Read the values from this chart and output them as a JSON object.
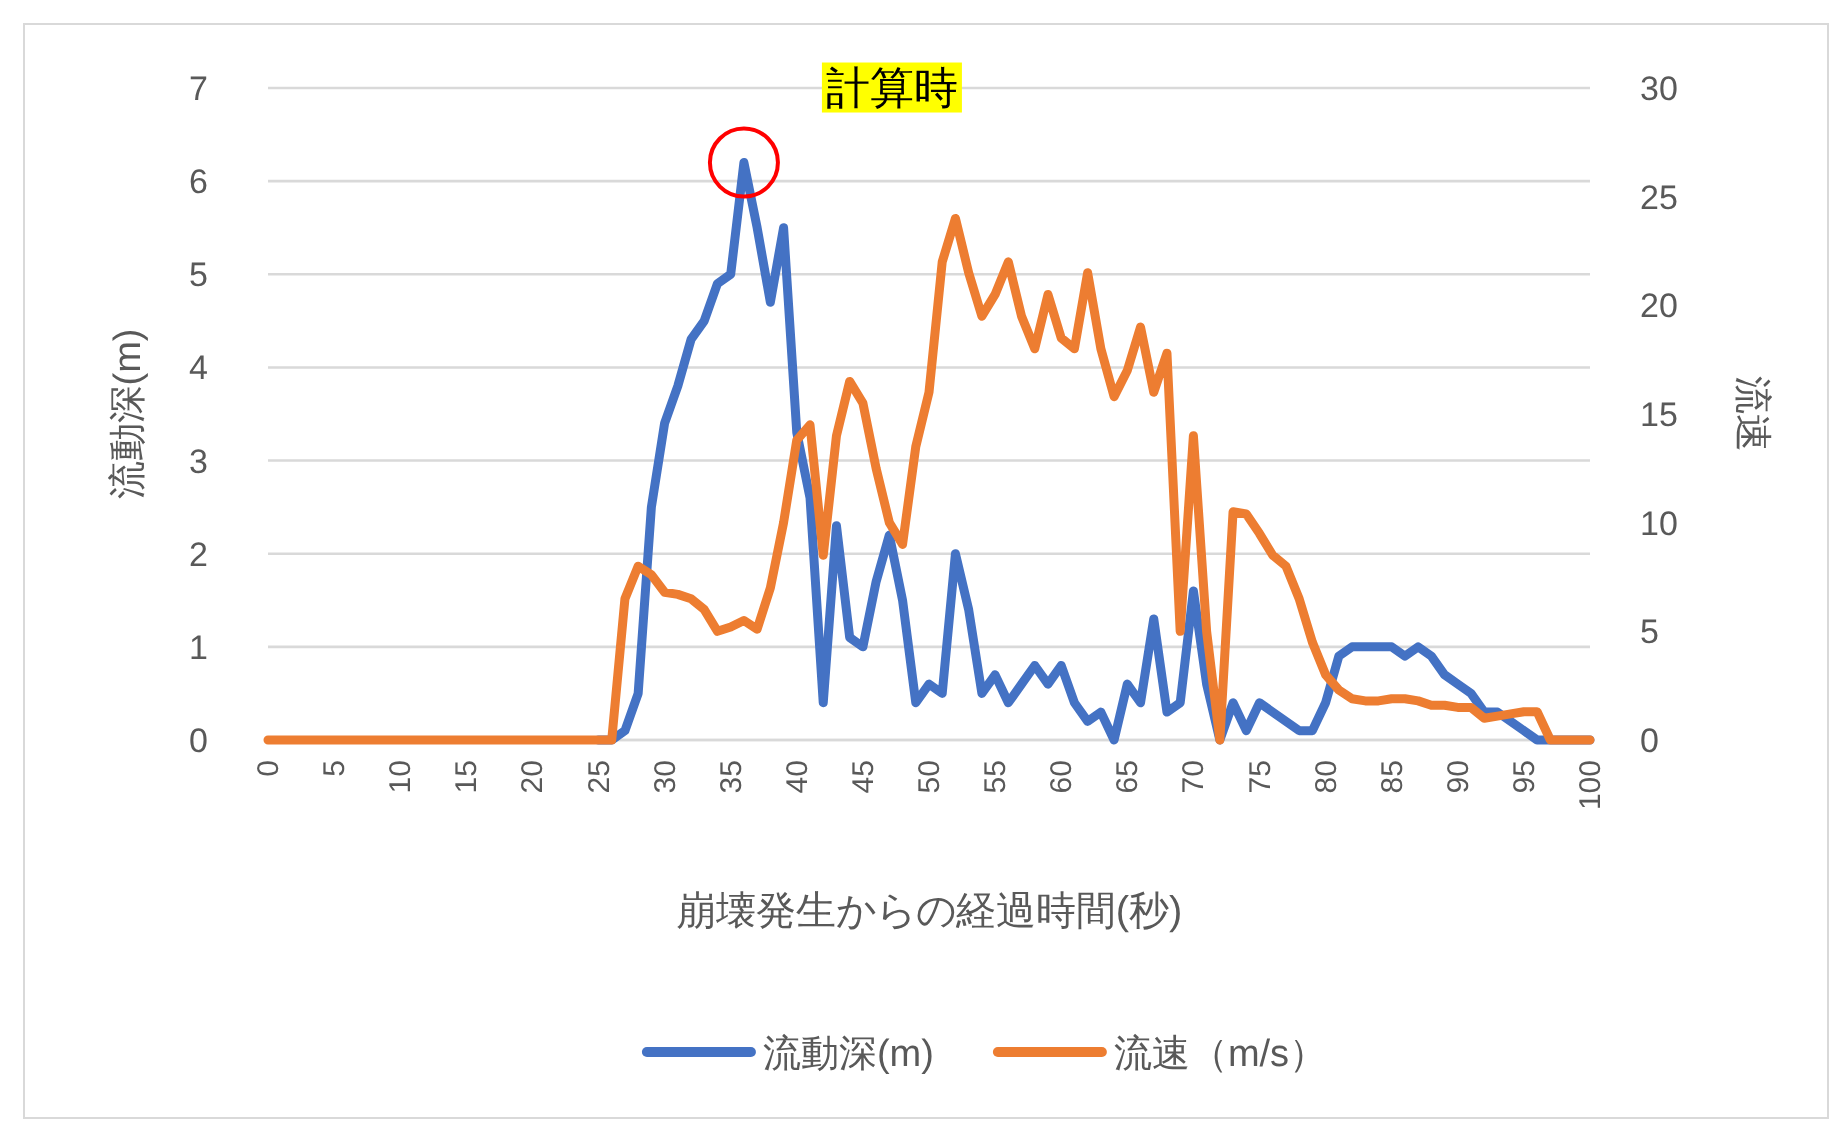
{
  "chart_data": {
    "type": "line",
    "xlabel": "崩壊発生からの経過時間(秒)",
    "ylabel": "流動深(m)",
    "y2label": "流速",
    "x": [
      0,
      1,
      2,
      3,
      4,
      5,
      6,
      7,
      8,
      9,
      10,
      11,
      12,
      13,
      14,
      15,
      16,
      17,
      18,
      19,
      20,
      21,
      22,
      23,
      24,
      25,
      26,
      27,
      28,
      29,
      30,
      31,
      32,
      33,
      34,
      35,
      36,
      37,
      38,
      39,
      40,
      41,
      42,
      43,
      44,
      45,
      46,
      47,
      48,
      49,
      50,
      51,
      52,
      53,
      54,
      55,
      56,
      57,
      58,
      59,
      60,
      61,
      62,
      63,
      64,
      65,
      66,
      67,
      68,
      69,
      70,
      71,
      72,
      73,
      74,
      75,
      76,
      77,
      78,
      79,
      80,
      81,
      82,
      83,
      84,
      85,
      86,
      87,
      88,
      89,
      90,
      91,
      92,
      93,
      94,
      95,
      96,
      97,
      98,
      99,
      100
    ],
    "series": [
      {
        "name": "流動深(m)",
        "color": "#4472c4",
        "values": [
          null,
          null,
          null,
          null,
          null,
          null,
          null,
          null,
          null,
          null,
          null,
          null,
          null,
          null,
          null,
          null,
          null,
          null,
          null,
          null,
          null,
          null,
          null,
          null,
          null,
          0,
          0,
          0.1,
          0.5,
          2.5,
          3.4,
          3.8,
          4.3,
          4.5,
          4.9,
          5.0,
          6.2,
          5.5,
          4.7,
          5.5,
          3.3,
          2.6,
          0.4,
          2.3,
          1.1,
          1.0,
          1.7,
          2.2,
          1.5,
          0.4,
          0.6,
          0.5,
          2.0,
          1.4,
          0.5,
          0.7,
          0.4,
          0.6,
          0.8,
          0.6,
          0.8,
          0.4,
          0.2,
          0.3,
          0.0,
          0.6,
          0.4,
          1.3,
          0.3,
          0.4,
          1.6,
          0.6,
          0.0,
          0.4,
          0.1,
          0.4,
          0.3,
          0.2,
          0.1,
          0.1,
          0.4,
          0.9,
          1.0,
          1.0,
          1.0,
          1.0,
          0.9,
          1.0,
          0.9,
          0.7,
          0.6,
          0.5,
          0.3,
          0.3,
          0.2,
          0.1,
          0,
          0,
          0,
          0,
          0
        ]
      },
      {
        "name": "流速（m/s）",
        "color": "#ed7d31",
        "axis": "y2",
        "values": [
          0,
          0,
          0,
          0,
          0,
          0,
          0,
          0,
          0,
          0,
          0,
          0,
          0,
          0,
          0,
          0,
          0,
          0,
          0,
          0,
          0,
          0,
          0,
          0,
          0,
          0,
          0,
          6.5,
          8,
          7.6,
          6.8,
          6.7,
          6.5,
          6,
          5,
          5.2,
          5.5,
          5.1,
          7,
          10,
          13.8,
          14.5,
          8.5,
          14,
          16.5,
          15.5,
          12.5,
          10,
          9,
          13.5,
          16,
          22,
          24,
          21.5,
          19.5,
          20.5,
          22,
          19.5,
          18,
          20.5,
          18.5,
          18,
          21.5,
          18,
          15.8,
          17,
          19,
          16,
          17.8,
          5,
          14,
          5,
          0,
          10.5,
          10.4,
          9.5,
          8.5,
          8,
          6.5,
          4.5,
          3,
          2.3,
          1.9,
          1.8,
          1.8,
          1.9,
          1.9,
          1.8,
          1.6,
          1.6,
          1.5,
          1.5,
          1,
          1.1,
          1.2,
          1.3,
          1.3,
          0,
          0,
          0,
          0
        ]
      }
    ],
    "xlim": [
      0,
      100
    ],
    "xticks": [
      0,
      5,
      10,
      15,
      20,
      25,
      30,
      35,
      40,
      45,
      50,
      55,
      60,
      65,
      70,
      75,
      80,
      85,
      90,
      95,
      100
    ],
    "ylim": [
      0,
      7
    ],
    "yticks": [
      0,
      1,
      2,
      3,
      4,
      5,
      6,
      7
    ],
    "y2lim": [
      0,
      30
    ],
    "y2ticks": [
      0,
      5,
      10,
      15,
      20,
      25,
      30
    ],
    "annotations": [
      {
        "text": "計算時",
        "x": 36,
        "y": 6.2
      }
    ],
    "grid": "y",
    "legend": "bottom",
    "line_style": "solid",
    "marker": "none"
  }
}
